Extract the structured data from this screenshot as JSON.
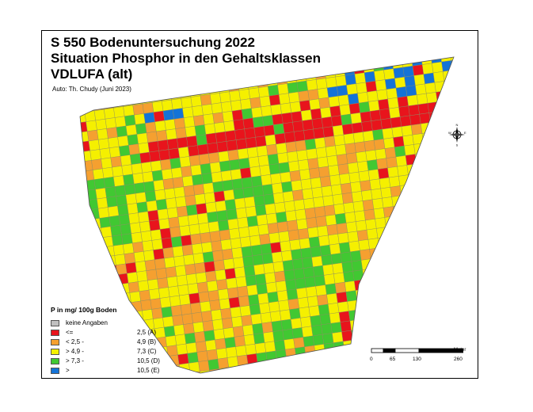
{
  "map": {
    "title_line1": "S 550 Bodenuntersuchung 2022",
    "title_line2": "Situation Phosphor in den Gehaltsklassen",
    "title_line3": "VDLUFA (alt)",
    "author": "Auto: Th. Chudy (Juni 2023)"
  },
  "legend": {
    "title": "P in mg/ 100g Boden",
    "entries": [
      {
        "label": "keine Angaben",
        "value_text": "",
        "color": "#c0c0c0"
      },
      {
        "label": "<=",
        "value_text": "2,5  (A)",
        "color": "#e8141c"
      },
      {
        "label": "<  2,5 -",
        "value_text": "4,9  (B)",
        "color": "#f5a030"
      },
      {
        "label": ">  4,9 -",
        "value_text": "7,3  (C)",
        "color": "#f5f000"
      },
      {
        "label": ">  7,3 -",
        "value_text": "10,5  (D)",
        "color": "#41c832"
      },
      {
        "label": ">",
        "value_text": "10,5  (E)",
        "color": "#1473d7"
      }
    ]
  },
  "scale": {
    "unit": "Meter",
    "ticks": [
      "0",
      "65",
      "130",
      "260"
    ]
  },
  "north_arrow": {
    "letters": [
      "N",
      "W",
      "E",
      "S"
    ]
  },
  "colors": {
    "none": "#c0c0c0",
    "A": "#e8141c",
    "B": "#f5a030",
    "C": "#f5f000",
    "D": "#41c832",
    "E": "#1473d7"
  }
}
